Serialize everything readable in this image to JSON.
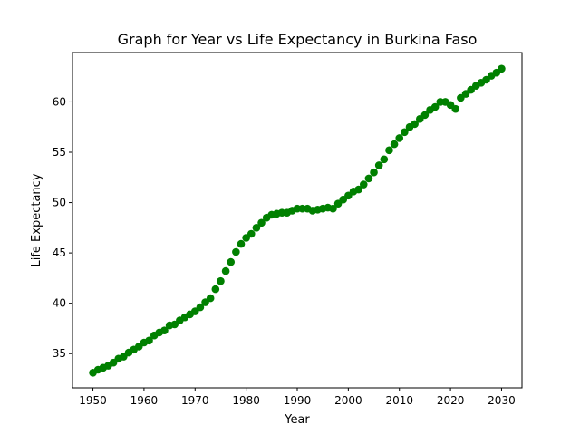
{
  "chart_data": {
    "type": "scatter",
    "title": "Graph for Year vs Life Expectancy in Burkina Faso",
    "xlabel": "Year",
    "ylabel": "Life Expectancy",
    "xlim": [
      1946,
      2034
    ],
    "ylim": [
      31.6,
      64.9
    ],
    "xticks": [
      1950,
      1960,
      1970,
      1980,
      1990,
      2000,
      2010,
      2020,
      2030
    ],
    "yticks": [
      35,
      40,
      45,
      50,
      55,
      60
    ],
    "grid": false,
    "marker_color": "#008000",
    "series": [
      {
        "x": [
          1950,
          1951,
          1952,
          1953,
          1954,
          1955,
          1956,
          1957,
          1958,
          1959,
          1960,
          1961,
          1962,
          1963,
          1964,
          1965,
          1966,
          1967,
          1968,
          1969,
          1970,
          1971,
          1972,
          1973,
          1974,
          1975,
          1976,
          1977,
          1978,
          1979,
          1980,
          1981,
          1982,
          1983,
          1984,
          1985,
          1986,
          1987,
          1988,
          1989,
          1990,
          1991,
          1992,
          1993,
          1994,
          1995,
          1996,
          1997,
          1998,
          1999,
          2000,
          2001,
          2002,
          2003,
          2004,
          2005,
          2006,
          2007,
          2008,
          2009,
          2010,
          2011,
          2012,
          2013,
          2014,
          2015,
          2016,
          2017,
          2018,
          2019,
          2020,
          2021,
          2022,
          2023,
          2024,
          2025,
          2026,
          2027,
          2028,
          2029,
          2030
        ],
        "y": [
          33.1,
          33.4,
          33.6,
          33.8,
          34.1,
          34.5,
          34.7,
          35.1,
          35.4,
          35.7,
          36.1,
          36.3,
          36.8,
          37.1,
          37.3,
          37.8,
          37.9,
          38.3,
          38.6,
          38.9,
          39.2,
          39.6,
          40.1,
          40.5,
          41.4,
          42.2,
          43.2,
          44.1,
          45.1,
          45.9,
          46.5,
          46.9,
          47.5,
          48.0,
          48.5,
          48.8,
          48.9,
          49.0,
          49.0,
          49.2,
          49.4,
          49.4,
          49.4,
          49.2,
          49.3,
          49.4,
          49.5,
          49.4,
          49.9,
          50.3,
          50.7,
          51.1,
          51.3,
          51.8,
          52.4,
          53.0,
          53.7,
          54.3,
          55.2,
          55.8,
          56.4,
          57.0,
          57.5,
          57.8,
          58.3,
          58.7,
          59.2,
          59.5,
          60.0,
          60.0,
          59.7,
          59.3,
          60.4,
          60.8,
          61.2,
          61.6,
          61.9,
          62.2,
          62.6,
          62.9,
          63.3
        ]
      }
    ]
  }
}
